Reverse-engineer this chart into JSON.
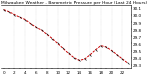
{
  "title": "Milwaukee Weather - Barometric Pressure per Hour (Last 24 Hours)",
  "hours": [
    0,
    1,
    2,
    3,
    4,
    5,
    6,
    7,
    8,
    9,
    10,
    11,
    12,
    13,
    14,
    15,
    16,
    17,
    18,
    19,
    20,
    21,
    22,
    23
  ],
  "pressure": [
    30.08,
    30.05,
    30.01,
    29.97,
    29.94,
    29.88,
    29.83,
    29.79,
    29.73,
    29.67,
    29.6,
    29.53,
    29.46,
    29.4,
    29.36,
    29.38,
    29.44,
    29.51,
    29.57,
    29.55,
    29.5,
    29.44,
    29.38,
    29.32
  ],
  "line_color": "#cc0000",
  "marker_color": "#000000",
  "grid_color": "#bbbbbb",
  "bg_color": "#ffffff",
  "ylim": [
    29.25,
    30.15
  ],
  "yticks": [
    29.3,
    29.4,
    29.5,
    29.6,
    29.7,
    29.8,
    29.9,
    30.0,
    30.1
  ],
  "ylabels": [
    "29.3",
    "29.4",
    "29.5",
    "29.6",
    "29.7",
    "29.8",
    "29.9",
    "30.0",
    "30.1"
  ],
  "title_fontsize": 3.2,
  "tick_fontsize": 3.0,
  "linewidth": 0.7,
  "markersize": 2.0
}
